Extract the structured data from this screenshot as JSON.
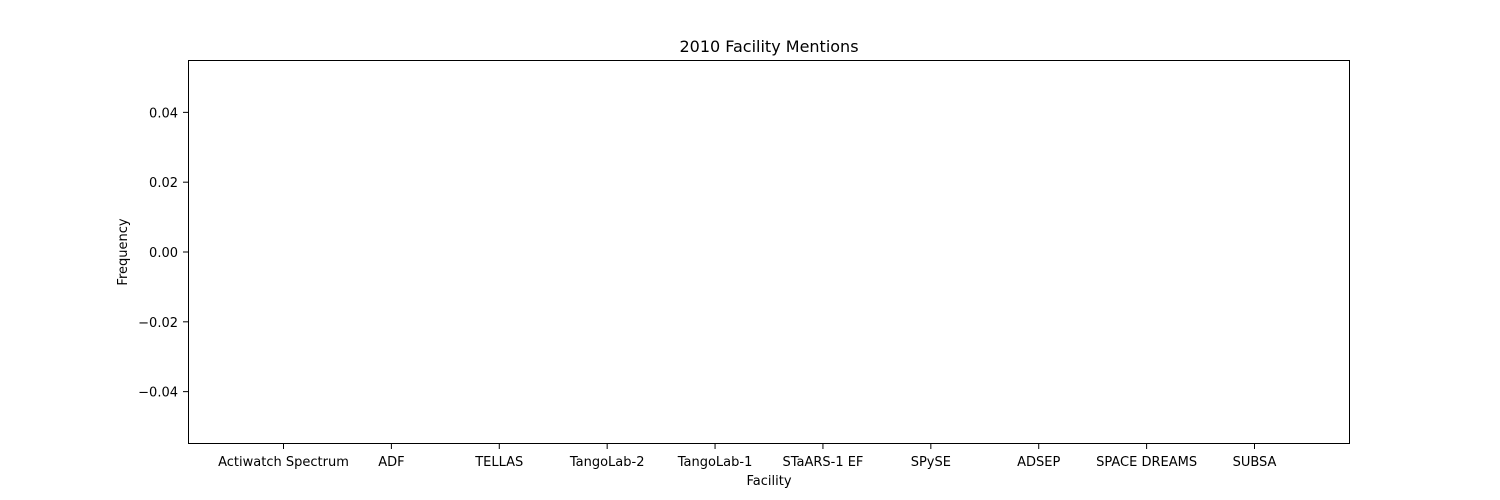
{
  "chart_data": {
    "type": "bar",
    "title": "2010 Facility Mentions",
    "xlabel": "Facility",
    "ylabel": "Frequency",
    "categories": [
      "Actiwatch Spectrum",
      "ADF",
      "TELLAS",
      "TangoLab-2",
      "TangoLab-1",
      "STaARS-1 EF",
      "SPySE",
      "ADSEP",
      "SPACE DREAMS",
      "SUBSA"
    ],
    "values": [
      0,
      0,
      0,
      0,
      0,
      0,
      0,
      0,
      0,
      0
    ],
    "ylim": [
      -0.055,
      0.055
    ],
    "yticks": [
      -0.04,
      -0.02,
      0.0,
      0.02,
      0.04
    ],
    "ytick_labels": [
      "−0.04",
      "−0.02",
      "0.00",
      "0.02",
      "0.04"
    ],
    "grid": false,
    "legend": "none"
  }
}
